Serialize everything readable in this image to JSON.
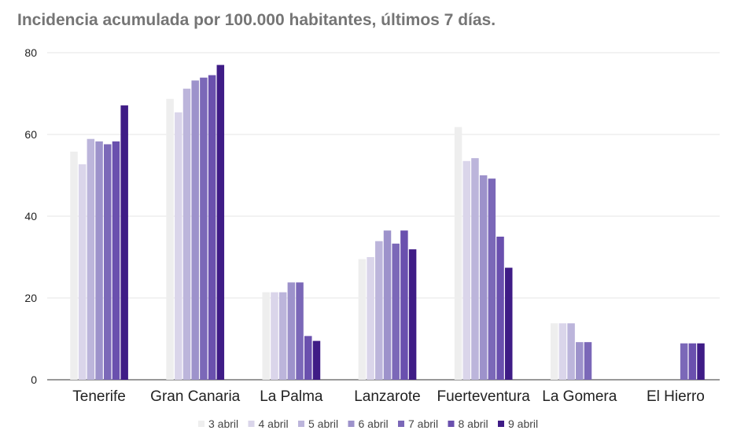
{
  "chart_data": {
    "type": "bar",
    "title": "Incidencia acumulada por 100.000 habitantes, últimos 7 días.",
    "xlabel": "",
    "ylabel": "",
    "ylim": [
      0,
      80
    ],
    "yticks": [
      0,
      20,
      40,
      60,
      80
    ],
    "grid": true,
    "legend_position": "bottom",
    "categories": [
      "Tenerife",
      "Gran Canaria",
      "La Palma",
      "Lanzarote",
      "Fuerteventura",
      "La Gomera",
      "El Hierro"
    ],
    "series": [
      {
        "name": "3 abril",
        "color": "#eeeeee",
        "values": [
          55.8,
          68.7,
          21.4,
          29.5,
          61.8,
          13.8,
          null
        ]
      },
      {
        "name": "4 abril",
        "color": "#dad5ea",
        "values": [
          52.7,
          65.4,
          21.4,
          30.0,
          53.5,
          13.8,
          null
        ]
      },
      {
        "name": "5 abril",
        "color": "#bcb5db",
        "values": [
          58.9,
          71.2,
          21.4,
          33.9,
          54.2,
          13.8,
          null
        ]
      },
      {
        "name": "6 abril",
        "color": "#9d92cb",
        "values": [
          58.3,
          73.2,
          23.8,
          36.5,
          50.0,
          9.2,
          null
        ]
      },
      {
        "name": "7 abril",
        "color": "#7b68b8",
        "values": [
          57.6,
          73.9,
          23.8,
          33.3,
          49.2,
          9.2,
          8.9
        ]
      },
      {
        "name": "8 abril",
        "color": "#6a50ae",
        "values": [
          58.3,
          74.5,
          10.7,
          36.5,
          35.0,
          null,
          8.9
        ]
      },
      {
        "name": "9 abril",
        "color": "#3f1c86",
        "values": [
          67.1,
          77.0,
          9.5,
          31.9,
          27.4,
          null,
          8.9
        ]
      }
    ]
  }
}
